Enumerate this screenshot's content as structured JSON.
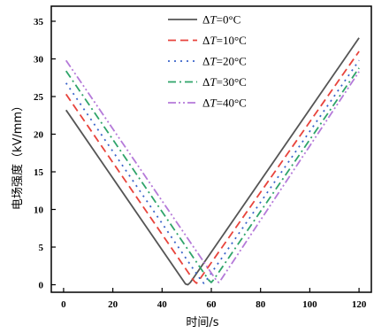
{
  "chart_data": {
    "type": "line",
    "title": "",
    "xlabel": "时间/s",
    "ylabel": "电场强度（kV/mm）",
    "xlim": [
      -5,
      125
    ],
    "ylim": [
      -1,
      37
    ],
    "xticks": [
      0,
      20,
      40,
      60,
      80,
      100,
      120
    ],
    "yticks": [
      0,
      5,
      10,
      15,
      20,
      25,
      30,
      35
    ],
    "grid": false,
    "legend": "top-right",
    "series": [
      {
        "name": "ΔT=0°C",
        "prefix": "Δ",
        "var": "T",
        "suffix": "=0°C",
        "color": "#555555",
        "dash": "solid",
        "points": [
          [
            1,
            23.2
          ],
          [
            2.5,
            22.5
          ],
          [
            49.5,
            0.1
          ],
          [
            50.5,
            0.0
          ],
          [
            51.5,
            0.3
          ],
          [
            120,
            32.8
          ]
        ]
      },
      {
        "name": "ΔT=10°C",
        "prefix": "Δ",
        "var": "T",
        "suffix": "=10°C",
        "color": "#e8443c",
        "dash": "dash",
        "points": [
          [
            1,
            25.3
          ],
          [
            53,
            0.5
          ],
          [
            54,
            0.2
          ],
          [
            55,
            0.6
          ],
          [
            120,
            31.0
          ]
        ]
      },
      {
        "name": "ΔT=20°C",
        "prefix": "Δ",
        "var": "T",
        "suffix": "=20°C",
        "color": "#3b64c9",
        "dash": "dot",
        "points": [
          [
            1,
            26.8
          ],
          [
            56,
            0.5
          ],
          [
            57,
            0.2
          ],
          [
            58,
            0.6
          ],
          [
            120,
            29.8
          ]
        ]
      },
      {
        "name": "ΔT=30°C",
        "prefix": "Δ",
        "var": "T",
        "suffix": "=30°C",
        "color": "#2fa46a",
        "dash": "dashdot",
        "points": [
          [
            1,
            28.4
          ],
          [
            59,
            0.6
          ],
          [
            60,
            0.3
          ],
          [
            61,
            0.7
          ],
          [
            120,
            28.8
          ]
        ]
      },
      {
        "name": "ΔT=40°C",
        "prefix": "Δ",
        "var": "T",
        "suffix": "=40°C",
        "color": "#b57ad9",
        "dash": "dashdotdot",
        "points": [
          [
            1,
            29.8
          ],
          [
            62,
            0.6
          ],
          [
            63,
            0.3
          ],
          [
            64,
            0.7
          ],
          [
            120,
            28.3
          ]
        ]
      }
    ]
  }
}
